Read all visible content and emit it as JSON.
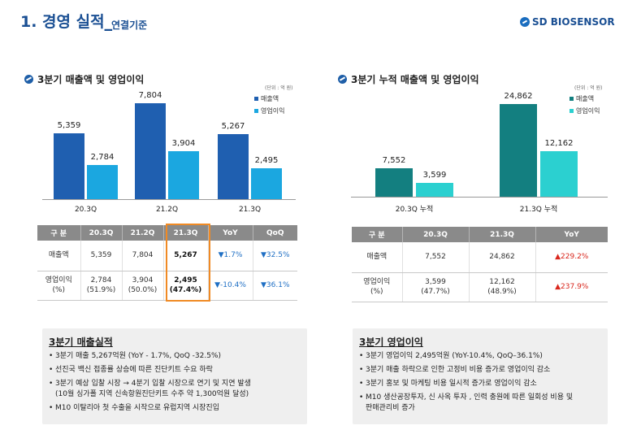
{
  "header": {
    "title": "1. 경영 실적",
    "title_suffix": "_",
    "subtitle": "연결기준",
    "brand": "SD BIOSENSOR"
  },
  "colors": {
    "blue_dark": "#1f5fb0",
    "blue_light": "#1ba7e0",
    "teal_dark": "#137f80",
    "teal_light": "#2bd0d0",
    "down_arrow": "#1f6fc4",
    "up_arrow": "#d9261c",
    "highlight": "#f08a24"
  },
  "left": {
    "section_title": "3분기 매출액 및 영업이익",
    "unit": "(단위 : 억 원)",
    "legend": {
      "sales": "매출액",
      "op": "영업이익"
    },
    "table": {
      "headers": [
        "구 분",
        "20.3Q",
        "21.2Q",
        "21.3Q",
        "YoY",
        "QoQ"
      ],
      "row1": {
        "label": "매출액",
        "q203": "5,359",
        "q212": "7,804",
        "q213": "5,267",
        "yoy": "▼1.7%",
        "qoq": "▼32.5%"
      },
      "row2": {
        "label_1": "영업이익",
        "label_2": "(%)",
        "q203_1": "2,784",
        "q203_2": "(51.9%)",
        "q212_1": "3,904",
        "q212_2": "(50.0%)",
        "q213_1": "2,495",
        "q213_2": "(47.4%)",
        "yoy": "▼-10.4%",
        "qoq": "▼36.1%"
      }
    },
    "box": {
      "title": "3분기 매출실적",
      "items": [
        "3분기 매출 5,267억원 (YoY - 1.7%,  QoQ -32.5%)",
        "선진국 백신 접종률 상승에 따른 진단키트 수요 하락",
        " 3분기 예상 입찰 시장 → 4분기 입찰 시장으로 연기 및 지연 발생",
        "M10 이탈리아 첫 수출을 시작으로 유럽지역 시장진입"
      ],
      "item3_line2": "(10월 싱가폴 지역 신속항원진단키트 수주 약 1,300억원 달성)"
    }
  },
  "right": {
    "section_title": "3분기 누적 매출액 및 영업이익",
    "unit": "(단위 : 억 원)",
    "legend": {
      "sales": "매출액",
      "op": "영업이익"
    },
    "table": {
      "headers": [
        "구 분",
        "20.3Q",
        "21.3Q",
        "YoY"
      ],
      "row1": {
        "label": "매출액",
        "q203": "7,552",
        "q213": "24,862",
        "yoy": "▲229.2%"
      },
      "row2": {
        "label_1": "영업이익",
        "label_2": "(%)",
        "q203_1": "3,599",
        "q203_2": "(47.7%)",
        "q213_1": "12,162",
        "q213_2": "(48.9%)",
        "yoy": "▲237.9%"
      }
    },
    "box": {
      "title": "3분기 영업이익",
      "items": [
        "3분기 영업이익 2,495억원 (YoY-10.4%, QoQ–36.1%)",
        "3분기 매출 하락으로 인한 고정비 비용 증가로 영업이익 감소",
        "3분기 홍보 및 마케팅 비용 일시적 증가로 영업이익 감소",
        "M10 생산공장투자, 신 사옥 투자 , 인력 충원에 따른 일회성 비용 및"
      ],
      "item4_line2": "판매관리비 증가"
    }
  },
  "chart_data": [
    {
      "type": "bar",
      "title": "3분기 매출액 및 영업이익",
      "categories": [
        "20.3Q",
        "21.2Q",
        "21.3Q"
      ],
      "series": [
        {
          "name": "매출액",
          "values": [
            5359,
            7804,
            5267
          ],
          "labels": [
            "5,359",
            "7,804",
            "5,267"
          ]
        },
        {
          "name": "영업이익",
          "values": [
            2784,
            3904,
            2495
          ],
          "labels": [
            "2,784",
            "3,904",
            "2,495"
          ]
        }
      ],
      "ylabel": "억 원",
      "ylim": [
        0,
        7804
      ]
    },
    {
      "type": "bar",
      "title": "3분기 누적 매출액 및 영업이익",
      "categories": [
        "20.3Q 누적",
        "21.3Q 누적"
      ],
      "series": [
        {
          "name": "매출액",
          "values": [
            7552,
            24862
          ],
          "labels": [
            "7,552",
            "24,862"
          ]
        },
        {
          "name": "영업이익",
          "values": [
            3599,
            12162
          ],
          "labels": [
            "3,599",
            "12,162"
          ]
        }
      ],
      "ylabel": "억 원",
      "ylim": [
        0,
        24862
      ]
    }
  ]
}
